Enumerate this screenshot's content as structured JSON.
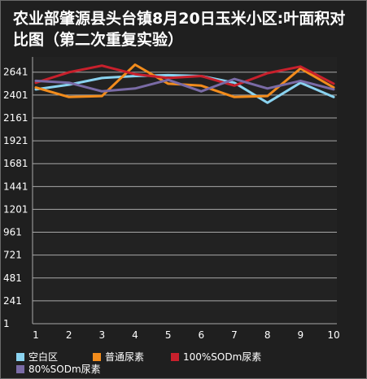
{
  "chart_data": {
    "type": "line",
    "title": "农业部肇源县头台镇8月20日玉米小区:叶面积对比图（第二次重复实验）",
    "x": [
      1,
      2,
      3,
      4,
      5,
      6,
      7,
      8,
      9,
      10
    ],
    "yticks": [
      1,
      241,
      481,
      721,
      961,
      1201,
      1441,
      1681,
      1921,
      2161,
      2401,
      2641
    ],
    "ylim": [
      1,
      2801
    ],
    "grid": true,
    "legend_position": "bottom",
    "series": [
      {
        "name": "空白区",
        "color": "#8ad3f0",
        "values": [
          2460,
          2510,
          2580,
          2600,
          2610,
          2600,
          2530,
          2320,
          2530,
          2380
        ]
      },
      {
        "name": "普通尿素",
        "color": "#f28c1c",
        "values": [
          2480,
          2380,
          2390,
          2720,
          2520,
          2500,
          2380,
          2390,
          2680,
          2480
        ]
      },
      {
        "name": "100%SODm尿素",
        "color": "#c8202c",
        "values": [
          2530,
          2640,
          2710,
          2620,
          2580,
          2600,
          2500,
          2630,
          2700,
          2520
        ]
      },
      {
        "name": "80%SODm尿素",
        "color": "#7a6ba6",
        "values": [
          2550,
          2530,
          2440,
          2470,
          2560,
          2440,
          2570,
          2470,
          2550,
          2460
        ]
      }
    ]
  }
}
